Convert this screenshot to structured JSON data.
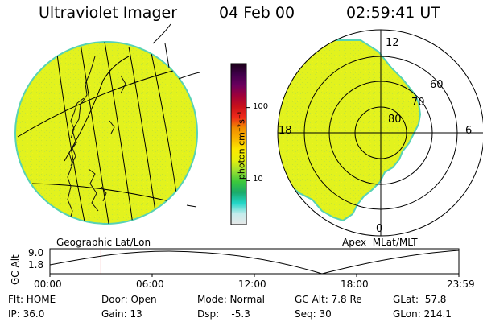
{
  "header": {
    "instrument": "Ultraviolet Imager",
    "date": "04 Feb 00",
    "time": "02:59:41 UT"
  },
  "colorbar": {
    "unit_label": "photon cm⁻²s⁻¹",
    "tick_labels": [
      "100",
      "10"
    ],
    "tick_values": [
      100,
      10
    ],
    "range": [
      2.5,
      400
    ],
    "scale": "log",
    "colors": [
      "#e8e8e8",
      "#c4ecec",
      "#22d6c8",
      "#1aaa6a",
      "#3cc83c",
      "#9ae032",
      "#e6f00c",
      "#fce800",
      "#f8b400",
      "#f08c00",
      "#ee2a1a",
      "#c8101a",
      "#a0003a",
      "#6a005e",
      "#40004a",
      "#1a0018"
    ]
  },
  "geographic_panel": {
    "caption": "Geographic Lat/Lon",
    "fill_color": "#e2f21e",
    "edge_color": "#58d2b4"
  },
  "polar_panel": {
    "caption": "Apex  MLat/MLT",
    "mlt_labels": [
      "12",
      "18",
      "6",
      "0"
    ],
    "mlat_labels": [
      "60",
      "70",
      "80"
    ],
    "fill_color": "#e2f21e",
    "edge_color": "#58d2b4"
  },
  "altitude_plot": {
    "ylabel": "GC Alt",
    "y_ticks": [
      "9.0",
      "1.8"
    ],
    "x_ticks": [
      "00:00",
      "06:00",
      "12:00",
      "18:00",
      "23:59"
    ],
    "marker_time": "02:59:41",
    "marker_color": "#e00000"
  },
  "status": {
    "row1": [
      "Flt: HOME",
      "Door: Open",
      "Mode: Normal",
      "GC Alt: 7.8 Re",
      "GLat:  57.8"
    ],
    "row2": [
      "IP: 36.0",
      "Gain: 13",
      "Dsp:    -5.3",
      "Seq: 30",
      "GLon: 214.1"
    ]
  }
}
